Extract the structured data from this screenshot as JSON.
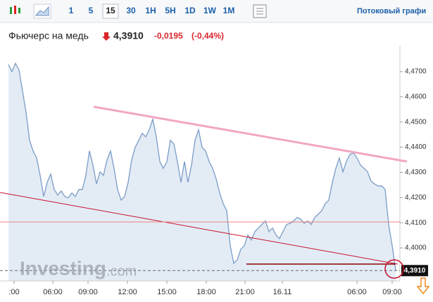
{
  "toolbar": {
    "intervals": [
      "1",
      "5",
      "15",
      "30",
      "1H",
      "5H",
      "1D",
      "1W",
      "1M"
    ],
    "selected": "15",
    "streaming": "Потоковый графи"
  },
  "header": {
    "title": "Фьючерс на медь",
    "price": "4,3910",
    "change": "-0,0195",
    "change_pct": "(-0,44%)"
  },
  "watermark": {
    "brand": "Investing",
    "suffix": ".com"
  },
  "chart_data": {
    "type": "area",
    "color": "#7a9cc6",
    "fill": "#e3ecf5",
    "values": [
      4.4728,
      4.47,
      4.4733,
      4.4706,
      4.4622,
      4.4538,
      4.4427,
      4.4385,
      4.4357,
      4.4288,
      4.4204,
      4.426,
      4.4293,
      4.4232,
      4.421,
      4.4226,
      4.4204,
      4.4199,
      4.4218,
      4.4204,
      4.4232,
      4.4232,
      4.4288,
      4.4385,
      4.4329,
      4.4254,
      4.4302,
      4.4288,
      4.4349,
      4.4385,
      4.4316,
      4.4232,
      4.419,
      4.4204,
      4.426,
      4.4349,
      4.4399,
      4.4427,
      4.4455,
      4.4441,
      4.4469,
      4.4511,
      4.4441,
      4.4343,
      4.4316,
      4.4343,
      4.4427,
      4.4413,
      4.4343,
      4.426,
      4.4343,
      4.426,
      4.4329,
      4.4427,
      4.4469,
      4.4399,
      4.4385,
      4.4343,
      4.4316,
      4.4274,
      4.4218,
      4.4176,
      4.4148,
      4.4009,
      4.3939,
      4.3953,
      4.3995,
      4.4009,
      4.4051,
      4.4031,
      4.4065,
      4.4079,
      4.4093,
      4.4107,
      4.4065,
      4.4079,
      4.4051,
      4.4037,
      4.4065,
      4.4093,
      4.4098,
      4.4107,
      4.4121,
      4.4115,
      4.4098,
      4.4107,
      4.4093,
      4.4121,
      4.4134,
      4.4148,
      4.4176,
      4.419,
      4.426,
      4.4316,
      4.4357,
      4.4302,
      4.4343,
      4.4371,
      4.4377,
      4.4357,
      4.4329,
      4.4316,
      4.4302,
      4.4265,
      4.4254,
      4.4246,
      4.4246,
      4.4232,
      4.4093,
      4.4009,
      4.391
    ],
    "price_label": "4,3910",
    "xlim": [
      0,
      110
    ],
    "xticks": [
      {
        "value": 1.6,
        "label": ":00"
      },
      {
        "value": 12.6,
        "label": "06:00"
      },
      {
        "value": 22.6,
        "label": "09:00"
      },
      {
        "value": 33.8,
        "label": "12:00"
      },
      {
        "value": 45,
        "label": "15:00"
      },
      {
        "value": 56.2,
        "label": "18:00"
      },
      {
        "value": 67.2,
        "label": "21:00"
      },
      {
        "value": 77.8,
        "label": "16.11"
      },
      {
        "value": 99,
        "label": "06:00"
      },
      {
        "value": 109,
        "label": "09:00"
      }
    ],
    "ylim": [
      4.3869,
      4.4775
    ],
    "yticks": [
      {
        "value": 4.4,
        "label": "4,4000"
      },
      {
        "value": 4.41,
        "label": "4,4100"
      },
      {
        "value": 4.42,
        "label": "4,4200"
      },
      {
        "value": 4.43,
        "label": "4,4300"
      },
      {
        "value": 4.44,
        "label": "4,4400"
      },
      {
        "value": 4.45,
        "label": "4,4500"
      },
      {
        "value": 4.46,
        "label": "4,4600"
      },
      {
        "value": 4.47,
        "label": "4,4700"
      }
    ]
  }
}
